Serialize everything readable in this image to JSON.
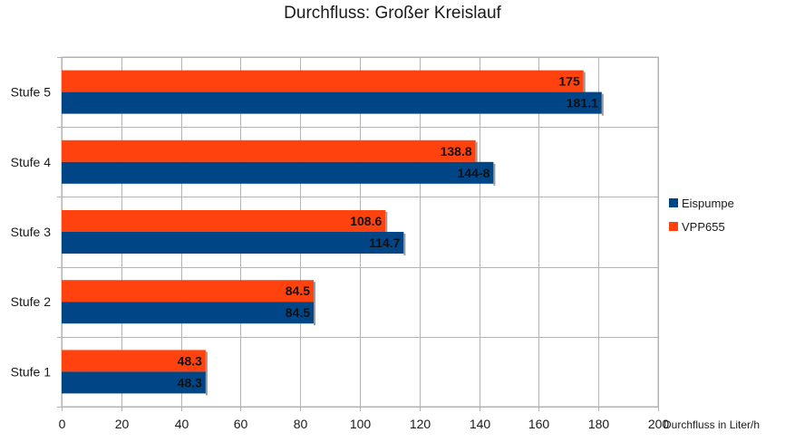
{
  "chart_data": {
    "type": "bar",
    "orientation": "horizontal",
    "title": "Durchfluss: Großer Kreislauf",
    "xlabel": "Durchfluss in Liter/h",
    "ylabel": "",
    "xlim": [
      0,
      200
    ],
    "tick_step": 20,
    "grid": true,
    "legend_position": "right",
    "categories": [
      "Stufe 1",
      "Stufe 2",
      "Stufe 3",
      "Stufe 4",
      "Stufe 5"
    ],
    "series": [
      {
        "name": "Eispumpe",
        "color": "#004586",
        "values": [
          48.3,
          84.5,
          114.7,
          144.8,
          181.1
        ],
        "labels": [
          "48.3",
          "84.5",
          "114.7",
          "144-8",
          "181.1"
        ]
      },
      {
        "name": "VPP655",
        "color": "#ff420e",
        "values": [
          48.3,
          84.5,
          108.6,
          138.8,
          175
        ],
        "labels": [
          "48.3",
          "84.5",
          "108.6",
          "138.8",
          "175"
        ]
      }
    ]
  }
}
